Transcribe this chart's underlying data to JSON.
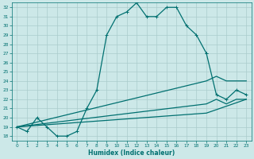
{
  "xlabel": "Humidex (Indice chaleur)",
  "bg_color": "#cce8e8",
  "grid_color": "#aacccc",
  "line_color": "#007070",
  "xlim": [
    -0.5,
    23.5
  ],
  "ylim": [
    17.5,
    32.5
  ],
  "xticks": [
    0,
    1,
    2,
    3,
    4,
    5,
    6,
    7,
    8,
    9,
    10,
    11,
    12,
    13,
    14,
    15,
    16,
    17,
    18,
    19,
    20,
    21,
    22,
    23
  ],
  "yticks": [
    18,
    19,
    20,
    21,
    22,
    23,
    24,
    25,
    26,
    27,
    28,
    29,
    30,
    31,
    32
  ],
  "line1_x": [
    0,
    1,
    2,
    3,
    4,
    5,
    6,
    7,
    8,
    9,
    10,
    11,
    12,
    13,
    14,
    15,
    16,
    17,
    18,
    19
  ],
  "line1_y": [
    19,
    18.5,
    20,
    19,
    18,
    18,
    18.5,
    21,
    23,
    29,
    31,
    31.5,
    32.5,
    31,
    31,
    32,
    32,
    30,
    29,
    27
  ],
  "line2_x": [
    19,
    20,
    21,
    22,
    23
  ],
  "line2_y": [
    27,
    22.5,
    22,
    23,
    22.5
  ],
  "line3_x": [
    0,
    19,
    20,
    21,
    22,
    23
  ],
  "line3_y": [
    19,
    24,
    24.5,
    24,
    24,
    24
  ],
  "line4_x": [
    0,
    19,
    20,
    21,
    22,
    23
  ],
  "line4_y": [
    19,
    21.5,
    22,
    21.5,
    22,
    22
  ],
  "line5_x": [
    0,
    19,
    23
  ],
  "line5_y": [
    19,
    20.5,
    22
  ]
}
